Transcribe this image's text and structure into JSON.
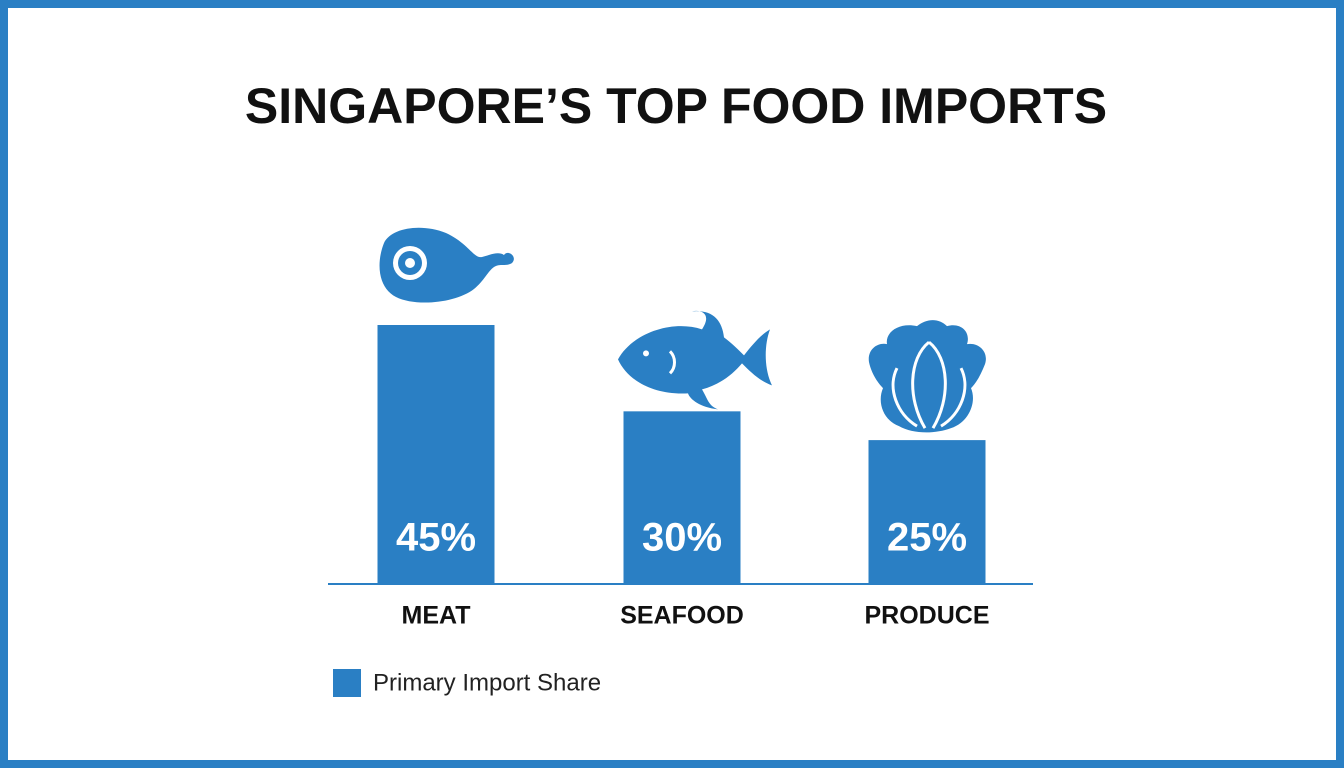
{
  "chart_data": {
    "type": "bar",
    "title": "SINGAPORE’S TOP FOOD IMPORTS",
    "categories": [
      "MEAT",
      "SEAFOOD",
      "PRODUCE"
    ],
    "series": [
      {
        "name": "Primary Import Share",
        "color": "#2a7fc4",
        "values": [
          45,
          30,
          25
        ],
        "value_labels": [
          "45%",
          "30%",
          "25%"
        ]
      }
    ],
    "legend": "bottom-left"
  }
}
